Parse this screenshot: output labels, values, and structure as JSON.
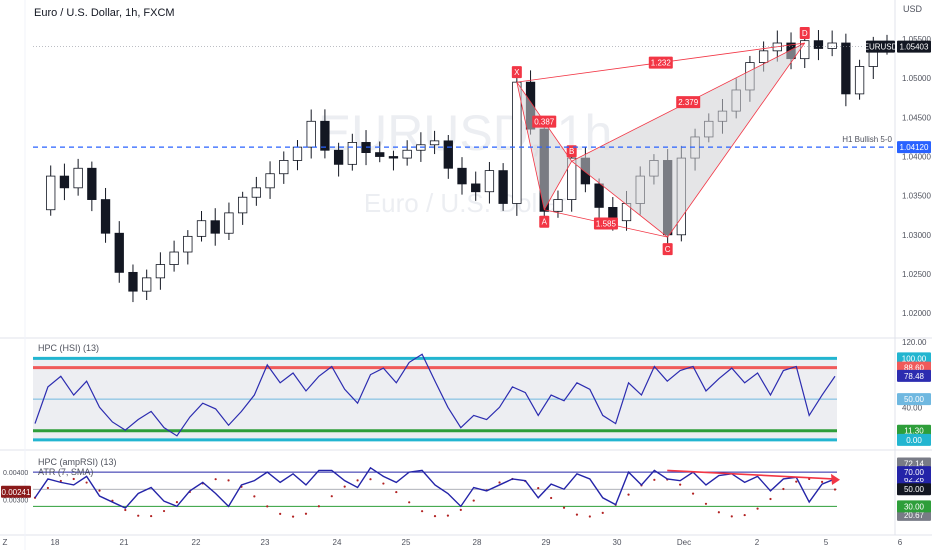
{
  "header": {
    "title": "Euro / U.S. Dollar, 1h, FXCM",
    "watermark_symbol": "EURUSD, 1h",
    "watermark_name": "Euro / U.S. Dollar"
  },
  "colors": {
    "up": "#ffffff",
    "down": "#131722",
    "outline": "#131722",
    "pattern_line": "#f23645",
    "pattern_fill": "#cfd0d4",
    "level": "#2962ff",
    "hsi_line": "#2c2cb0",
    "cyan": "#22b5d0",
    "red_band": "#f05a5a",
    "green_band": "#2e9e3a",
    "mid_band": "#6fb8e0",
    "amprsi_line": "#2424a8",
    "atr_dots": "#b22222",
    "arrow": "#f23645"
  },
  "chart_data": [
    {
      "type": "candlestick",
      "title": "Euro / U.S. Dollar, 1h, FXCM",
      "price_axis_unit": "USD",
      "y_ticks": [
        1.02,
        1.025,
        1.03,
        1.035,
        1.04,
        1.045,
        1.05,
        1.055
      ],
      "y_tick_labels": [
        "1.02000",
        "1.02500",
        "1.03000",
        "1.03500",
        "1.04000",
        "1.04500",
        "1.05000",
        "1.05500"
      ],
      "ylim": [
        1.0172,
        1.0568
      ],
      "x_tick_labels": [
        "Z",
        "18",
        "21",
        "22",
        "23",
        "24",
        "25",
        "28",
        "29",
        "30",
        "Dec",
        "2",
        "5",
        "6"
      ],
      "price_path": [
        1.0332,
        1.0375,
        1.036,
        1.0385,
        1.0345,
        1.0302,
        1.0252,
        1.0228,
        1.0245,
        1.0262,
        1.0278,
        1.0298,
        1.0318,
        1.0302,
        1.0328,
        1.0348,
        1.036,
        1.0378,
        1.0395,
        1.0412,
        1.0445,
        1.0408,
        1.039,
        1.0418,
        1.0405,
        1.04,
        1.0398,
        1.0408,
        1.0415,
        1.042,
        1.0385,
        1.0365,
        1.0355,
        1.0382,
        1.034,
        1.0495,
        1.0435,
        1.033,
        1.0345,
        1.0398,
        1.0365,
        1.0335,
        1.0318,
        1.034,
        1.0375,
        1.0395,
        1.03,
        1.0398,
        1.0425,
        1.0445,
        1.0458,
        1.0485,
        1.052,
        1.0535,
        1.0545,
        1.0525,
        1.0548,
        1.0538,
        1.0545,
        1.048,
        1.0515,
        1.0538,
        1.054
      ],
      "swing_points": [
        {
          "label": "X",
          "price": 1.0495
        },
        {
          "label": "A",
          "price": 1.0332
        },
        {
          "label": "B",
          "price": 1.0394
        },
        {
          "label": "C",
          "price": 1.0297
        },
        {
          "label": "D",
          "price": 1.0545
        }
      ],
      "ratios": [
        "0.387",
        "1.585",
        "2.379",
        "1.232"
      ],
      "level_line": {
        "label": "H1 Bullish 5-0",
        "price": 1.0412,
        "price_label": "1.04120"
      },
      "last_price": {
        "symbol": "EURUSD",
        "price_label": "1.05403",
        "price": 1.05403
      }
    },
    {
      "type": "line",
      "title": "HPC (HSI) (13)",
      "ylim": [
        -5,
        120
      ],
      "axis_labels": [
        "120.00",
        "50.00",
        "40.00"
      ],
      "levels": [
        {
          "value": 100,
          "label": "100.00",
          "color": "cyan"
        },
        {
          "value": 88.6,
          "label": "88.60",
          "color": "red_band"
        },
        {
          "value": 50,
          "label": "50.00",
          "color": "mid_band"
        },
        {
          "value": 11.3,
          "label": "11.30",
          "color": "green_band"
        },
        {
          "value": 0,
          "label": "0.00",
          "color": "cyan"
        }
      ],
      "last_value": {
        "label": "78.48",
        "value": 78.48
      },
      "series": [
        {
          "values": [
            20,
            65,
            78,
            55,
            72,
            40,
            22,
            12,
            25,
            35,
            15,
            5,
            28,
            45,
            38,
            18,
            35,
            55,
            92,
            70,
            82,
            60,
            78,
            90,
            62,
            45,
            80,
            88,
            70,
            95,
            105,
            72,
            40,
            15,
            30,
            25,
            40,
            65,
            58,
            30,
            55,
            48,
            70,
            62,
            30,
            20,
            70,
            55,
            90,
            72,
            85,
            90,
            60,
            75,
            88,
            70,
            82,
            55,
            85,
            90,
            30,
            55,
            78
          ]
        }
      ]
    },
    {
      "type": "line",
      "title": "HPC (ampRSI) (13)",
      "subtitle": "ATR (7, SMA)",
      "levels": [
        {
          "value": 70,
          "label": "70.00"
        },
        {
          "value": 50,
          "label": "50.00"
        },
        {
          "value": 30,
          "label": "30.00"
        }
      ],
      "axis_labels": [
        "72.14",
        "62.26",
        "20.67"
      ],
      "last_value": {
        "label": "62.26",
        "value": 62.26
      },
      "atr": {
        "labels": [
          "0.00400",
          "0.00300"
        ],
        "last_label": "0.00241",
        "last_value": 0.00241
      },
      "series": [
        {
          "values": [
            40,
            62,
            58,
            55,
            65,
            42,
            35,
            28,
            45,
            52,
            36,
            30,
            48,
            58,
            45,
            30,
            55,
            60,
            70,
            58,
            68,
            55,
            72,
            72,
            60,
            52,
            75,
            65,
            58,
            70,
            72,
            55,
            45,
            30,
            52,
            48,
            55,
            62,
            60,
            40,
            56,
            50,
            68,
            62,
            40,
            32,
            70,
            55,
            72,
            62,
            60,
            70,
            55,
            66,
            68,
            58,
            65,
            48,
            62,
            64,
            35,
            56,
            62
          ]
        }
      ]
    }
  ]
}
